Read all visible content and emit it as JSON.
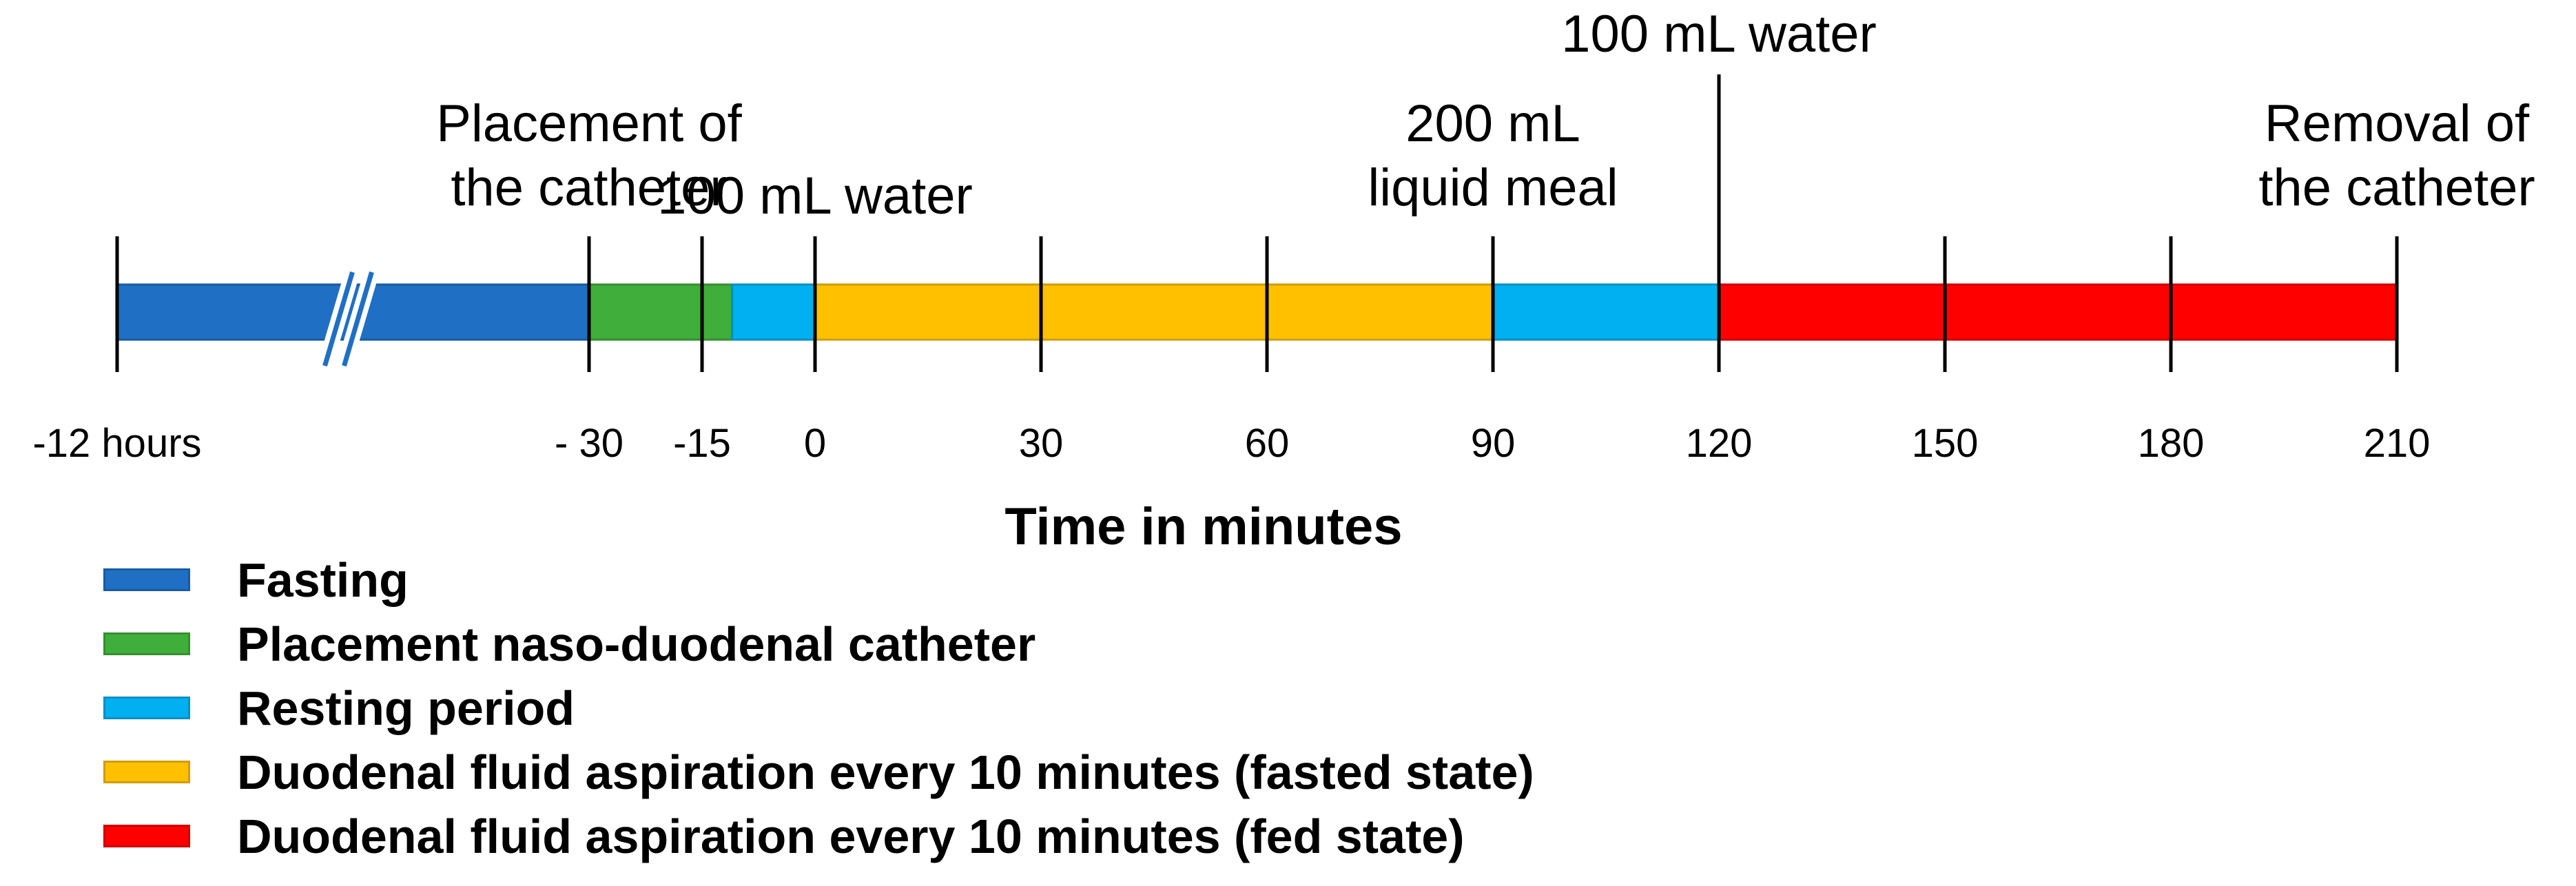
{
  "chart_data": {
    "type": "timeline",
    "axis_title": "Time in minutes",
    "colors": {
      "fasting": "#1f6fc5",
      "placement": "#3fae3a",
      "resting": "#00b0f0",
      "fasted": "#ffc000",
      "fed": "#ff0000",
      "line": "#000000"
    },
    "ticks": [
      {
        "t": -45,
        "label": "-12 hours"
      },
      {
        "t": -30,
        "label": "- 30"
      },
      {
        "t": -15,
        "label": "-15"
      },
      {
        "t": 0,
        "label": "0"
      },
      {
        "t": 30,
        "label": "30"
      },
      {
        "t": 60,
        "label": "60"
      },
      {
        "t": 90,
        "label": "90"
      },
      {
        "t": 120,
        "label": "120"
      },
      {
        "t": 150,
        "label": "150"
      },
      {
        "t": 180,
        "label": "180"
      },
      {
        "t": 210,
        "label": "210"
      }
    ],
    "segments": [
      {
        "name": "fasting",
        "label": "Fasting",
        "start": -45,
        "end": -30,
        "color_key": "fasting",
        "axis_break": true
      },
      {
        "name": "placement",
        "label": "Placement naso-duodenal catheter",
        "start": -30,
        "end": -11,
        "color_key": "placement"
      },
      {
        "name": "resting-1",
        "label": "Resting period",
        "start": -11,
        "end": 0,
        "color_key": "resting"
      },
      {
        "name": "fasted-state",
        "label": "Duodenal fluid aspiration every 10 minutes (fasted state)",
        "start": 0,
        "end": 90,
        "color_key": "fasted"
      },
      {
        "name": "resting-2",
        "label": "Resting period",
        "start": 90,
        "end": 120,
        "color_key": "resting"
      },
      {
        "name": "fed-state",
        "label": "Duodenal fluid aspiration every 10 minutes (fed state)",
        "start": 120,
        "end": 210,
        "color_key": "fed"
      }
    ],
    "events": [
      {
        "t": -30,
        "lines": [
          "Placement of",
          "the catheter"
        ],
        "level": "mid"
      },
      {
        "t": 0,
        "lines": [
          "100 mL water"
        ],
        "level": "low"
      },
      {
        "t": 90,
        "lines": [
          "200 mL",
          "liquid meal"
        ],
        "level": "mid"
      },
      {
        "t": 120,
        "lines": [
          "100 mL water"
        ],
        "level": "high"
      },
      {
        "t": 210,
        "lines": [
          "Removal of",
          "the catheter"
        ],
        "level": "mid"
      }
    ]
  },
  "legend": {
    "items": [
      {
        "label": "Fasting",
        "color_key": "fasting"
      },
      {
        "label": "Placement naso-duodenal catheter",
        "color_key": "placement"
      },
      {
        "label": "Resting period",
        "color_key": "resting"
      },
      {
        "label": "Duodenal fluid aspiration every 10 minutes (fasted state)",
        "color_key": "fasted"
      },
      {
        "label": "Duodenal fluid aspiration every 10 minutes (fed state)",
        "color_key": "fed"
      }
    ]
  }
}
